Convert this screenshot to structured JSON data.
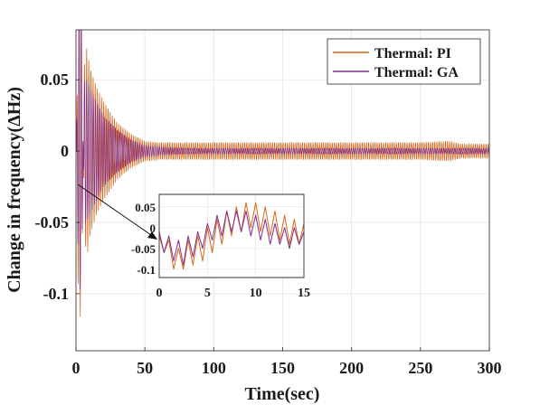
{
  "chart_data": {
    "type": "line",
    "title": "",
    "xlabel": "Time(sec)",
    "ylabel": "Change in frequency(ΔHz)",
    "xlim": [
      0,
      300
    ],
    "ylim": [
      -0.14,
      0.085
    ],
    "xticks": [
      0,
      50,
      100,
      150,
      200,
      250,
      300
    ],
    "xtick_labels": [
      "0",
      "50",
      "100",
      "150",
      "200",
      "250",
      "300"
    ],
    "yticks": [
      0.05,
      0,
      -0.05,
      -0.1
    ],
    "ytick_labels": [
      "0.05",
      "0",
      "-0.05",
      "-0.1"
    ],
    "grid": true,
    "legend_position": "top-right",
    "series": [
      {
        "name": "Thermal: PI",
        "color": "#D9661A",
        "x": [
          0,
          2,
          4,
          6,
          8,
          10,
          15,
          20,
          30,
          40,
          50,
          60,
          80,
          100,
          150,
          200,
          250,
          270,
          280,
          300
        ],
        "envelope": [
          0.02,
          -0.125,
          -0.11,
          0.06,
          0.075,
          0.06,
          0.045,
          0.035,
          0.02,
          0.012,
          0.007,
          0.006,
          0.006,
          0.006,
          0.006,
          0.006,
          0.006,
          0.007,
          0.005,
          0.005
        ]
      },
      {
        "name": "Thermal: GA",
        "color": "#7E2F8E",
        "x": [
          0,
          2,
          4,
          6,
          8,
          10,
          15,
          20,
          30,
          40,
          50,
          60,
          80,
          100,
          150,
          200,
          250,
          300
        ],
        "envelope": [
          0.015,
          -0.1,
          -0.095,
          0.05,
          0.05,
          0.045,
          0.035,
          0.025,
          0.015,
          0.008,
          0.004,
          0.003,
          0.002,
          0.002,
          0.002,
          0.002,
          0.002,
          0.002
        ]
      }
    ],
    "inset": {
      "type": "line",
      "xlim": [
        0,
        15
      ],
      "ylim": [
        -0.12,
        0.08
      ],
      "xticks": [
        0,
        5,
        10,
        15
      ],
      "xtick_labels": [
        "0",
        "5",
        "10",
        "15"
      ],
      "yticks": [
        0.05,
        0,
        -0.05,
        -0.1
      ],
      "ytick_labels": [
        "0.05",
        "0",
        "-0.05",
        "-0.1"
      ],
      "series": [
        {
          "name": "Thermal: PI",
          "color": "#D9661A",
          "x": [
            0,
            0.5,
            1,
            1.5,
            2,
            2.5,
            3,
            3.5,
            4,
            4.5,
            5,
            5.5,
            6,
            6.5,
            7,
            7.5,
            8,
            8.5,
            9,
            9.5,
            10,
            10.5,
            11,
            11.5,
            12,
            12.5,
            13,
            13.5,
            14,
            14.5,
            15
          ],
          "y": [
            -0.02,
            -0.06,
            -0.03,
            -0.1,
            -0.05,
            -0.1,
            -0.03,
            -0.09,
            -0.02,
            -0.08,
            0.0,
            -0.06,
            0.02,
            -0.04,
            0.04,
            -0.02,
            0.05,
            -0.01,
            0.06,
            0.0,
            0.06,
            -0.01,
            0.05,
            -0.02,
            0.04,
            -0.03,
            0.03,
            -0.04,
            0.02,
            -0.04,
            0.01
          ]
        },
        {
          "name": "Thermal: GA",
          "color": "#7E2F8E",
          "x": [
            0,
            0.5,
            1,
            1.5,
            2,
            2.5,
            3,
            3.5,
            4,
            4.5,
            5,
            5.5,
            6,
            6.5,
            7,
            7.5,
            8,
            8.5,
            9,
            9.5,
            10,
            10.5,
            11,
            11.5,
            12,
            12.5,
            13,
            13.5,
            14,
            14.5,
            15
          ],
          "y": [
            -0.01,
            -0.06,
            -0.02,
            -0.08,
            -0.03,
            -0.09,
            -0.02,
            -0.07,
            -0.01,
            -0.05,
            0.01,
            -0.03,
            0.03,
            -0.02,
            0.04,
            -0.01,
            0.04,
            -0.01,
            0.04,
            -0.02,
            0.03,
            -0.03,
            0.02,
            -0.04,
            0.01,
            -0.04,
            0.0,
            -0.05,
            0.0,
            -0.04,
            -0.01
          ]
        }
      ]
    }
  }
}
